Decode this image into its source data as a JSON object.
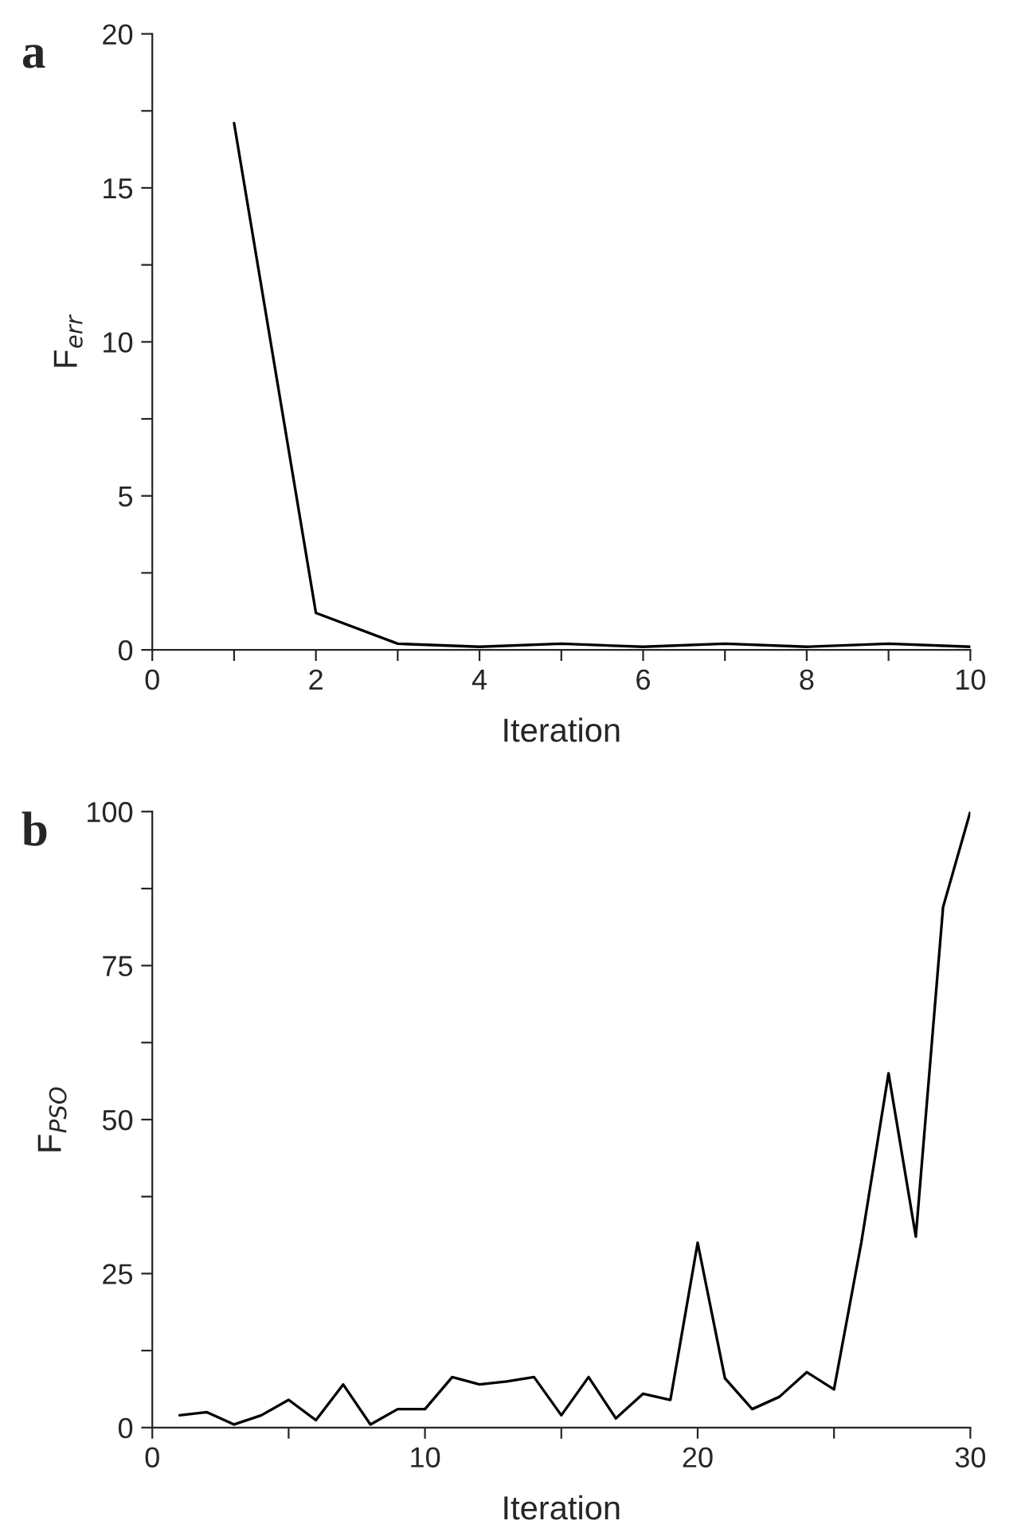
{
  "chart_data": [
    {
      "type": "line",
      "title": "a",
      "xlabel": "Iteration",
      "ylabel": "F$_{err}$",
      "x": [
        1,
        2,
        3,
        4,
        5,
        6,
        7,
        8,
        9,
        10
      ],
      "series": [
        {
          "color": "#000000",
          "values": [
            17.1,
            1.2,
            0.2,
            0.1,
            0.2,
            0.1,
            0.2,
            0.1,
            0.2,
            0.1
          ]
        }
      ],
      "xlim": [
        0,
        10
      ],
      "ylim": [
        0,
        20
      ],
      "xticks": [
        0,
        {
          "value": 1,
          "label": null
        },
        2,
        {
          "value": 3,
          "label": null
        },
        4,
        {
          "value": 5,
          "label": null
        },
        6,
        {
          "value": 7,
          "label": null
        },
        8,
        {
          "value": 9,
          "label": null
        },
        10
      ],
      "yticks": [
        0,
        {
          "value": 2.5,
          "label": null
        },
        5,
        {
          "value": 7.5,
          "label": null
        },
        10,
        {
          "value": 12.5,
          "label": null
        },
        15,
        {
          "value": 17.5,
          "label": null
        },
        20
      ],
      "grid": false,
      "marker": "none",
      "line_style": "solid"
    },
    {
      "type": "line",
      "title": "b",
      "xlabel": "Iteration",
      "ylabel": "F$_{PSO}$",
      "x": [
        1,
        2,
        3,
        4,
        5,
        6,
        7,
        8,
        9,
        10,
        11,
        12,
        13,
        14,
        15,
        16,
        17,
        18,
        19,
        20,
        21,
        22,
        23,
        24,
        25,
        26,
        27,
        28,
        29,
        30
      ],
      "series": [
        {
          "color": "#000000",
          "values": [
            2,
            2.5,
            0.5,
            2,
            4.5,
            1.2,
            7,
            0.5,
            3,
            3,
            8.2,
            7,
            7.5,
            8.2,
            2,
            8.2,
            1.5,
            5.5,
            4.5,
            30,
            8,
            3,
            5,
            9,
            6.2,
            30,
            57.5,
            31,
            84.5,
            100
          ]
        }
      ],
      "xlim": [
        0,
        30
      ],
      "ylim": [
        0,
        100
      ],
      "xticks": [
        0,
        {
          "value": 5,
          "label": null
        },
        10,
        {
          "value": 15,
          "label": null
        },
        20,
        {
          "value": 25,
          "label": null
        },
        30
      ],
      "yticks": [
        0,
        {
          "value": 12.5,
          "label": null
        },
        25,
        {
          "value": 37.5,
          "label": null
        },
        50,
        {
          "value": 62.5,
          "label": null
        },
        75,
        {
          "value": 87.5,
          "label": null
        },
        100
      ],
      "grid": false,
      "marker": "none",
      "line_style": "solid"
    }
  ]
}
